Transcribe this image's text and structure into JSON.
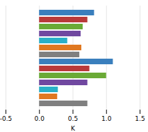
{
  "chart_data": {
    "type": "bar",
    "orientation": "horizontal",
    "xlabel": "K",
    "categories": [
      null,
      null,
      null,
      null,
      null,
      null,
      null,
      null,
      null,
      null,
      null,
      null,
      null,
      null
    ],
    "values": [
      0.82,
      0.72,
      0.65,
      0.62,
      0.42,
      0.63,
      0.6,
      1.1,
      0.75,
      1.0,
      0.72,
      0.28,
      0.27,
      0.72
    ],
    "colors": [
      "#3a7fbd",
      "#b93a3a",
      "#6aaa36",
      "#7048a0",
      "#2ab0c8",
      "#e07820",
      "#808080",
      "#3a7fbd",
      "#b93a3a",
      "#6aaa36",
      "#7048a0",
      "#2ab0c8",
      "#e07820",
      "#808080"
    ],
    "xlim": [
      -0.5,
      1.5
    ],
    "xticks": [
      -0.5,
      {
        "value": 0,
        "label": "0.0"
      },
      0.5,
      {
        "value": 1,
        "label": "1.0"
      },
      1.5
    ],
    "grid": true,
    "tick_labels": "x"
  }
}
